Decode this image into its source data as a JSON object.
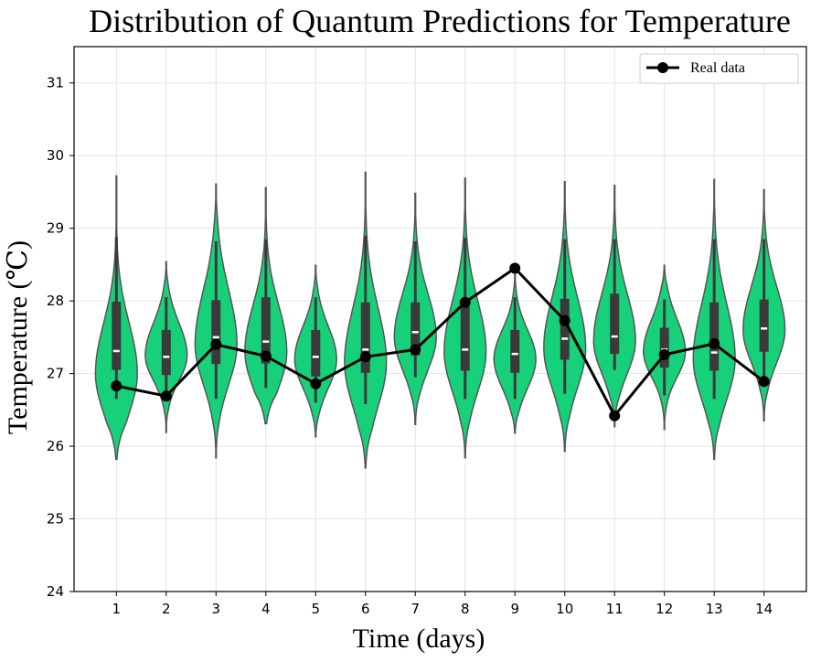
{
  "chart_data": {
    "type": "violin",
    "title": "Distribution of Quantum Predictions for Temperature",
    "xlabel": "Time (days)",
    "ylabel": "Temperature (℃)",
    "xlim": [
      0.15,
      14.85
    ],
    "ylim": [
      24,
      31.5
    ],
    "x_ticks": [
      "1",
      "2",
      "3",
      "4",
      "5",
      "6",
      "7",
      "8",
      "9",
      "10",
      "11",
      "12",
      "13",
      "14"
    ],
    "y_ticks": [
      "24",
      "25",
      "26",
      "27",
      "28",
      "29",
      "30",
      "31"
    ],
    "grid": true,
    "legend": {
      "position": "top-right",
      "entries": [
        "Real data"
      ]
    },
    "colors": {
      "violin_fill": "#17d17a",
      "violin_edge": "#555555",
      "box": "#3a3a3a",
      "median": "#ffffff",
      "line": "#000000"
    },
    "real_data": {
      "name": "Real data",
      "x": [
        1,
        2,
        3,
        4,
        5,
        6,
        7,
        8,
        9,
        10,
        11,
        12,
        13,
        14
      ],
      "y": [
        26.83,
        26.69,
        27.4,
        27.24,
        26.86,
        27.23,
        27.33,
        27.98,
        28.45,
        27.73,
        26.42,
        27.26,
        27.41,
        26.89
      ]
    },
    "violins": [
      {
        "day": 1,
        "min": 25.82,
        "max": 29.72,
        "q1": 27.05,
        "median": 27.31,
        "q3": 27.99,
        "wlo": 26.65,
        "whi": 28.88,
        "mode": 27.0,
        "sl": 0.55,
        "su": 0.7
      },
      {
        "day": 2,
        "min": 26.19,
        "max": 28.54,
        "q1": 26.98,
        "median": 27.23,
        "q3": 27.6,
        "wlo": 26.7,
        "whi": 28.05,
        "mode": 27.25,
        "sl": 0.35,
        "su": 0.45
      },
      {
        "day": 3,
        "min": 25.84,
        "max": 29.61,
        "q1": 27.13,
        "median": 27.5,
        "q3": 28.01,
        "wlo": 26.65,
        "whi": 28.82,
        "mode": 27.4,
        "sl": 0.55,
        "su": 0.75
      },
      {
        "day": 4,
        "min": 26.31,
        "max": 29.56,
        "q1": 27.14,
        "median": 27.44,
        "q3": 28.05,
        "wlo": 26.8,
        "whi": 28.85,
        "mode": 27.3,
        "sl": 0.5,
        "su": 0.65
      },
      {
        "day": 5,
        "min": 26.13,
        "max": 28.49,
        "q1": 26.96,
        "median": 27.23,
        "q3": 27.6,
        "wlo": 26.6,
        "whi": 28.05,
        "mode": 27.2,
        "sl": 0.4,
        "su": 0.45
      },
      {
        "day": 6,
        "min": 25.7,
        "max": 29.77,
        "q1": 27.01,
        "median": 27.33,
        "q3": 27.98,
        "wlo": 26.58,
        "whi": 28.9,
        "mode": 27.15,
        "sl": 0.6,
        "su": 0.75
      },
      {
        "day": 7,
        "min": 26.3,
        "max": 29.48,
        "q1": 27.25,
        "median": 27.57,
        "q3": 27.98,
        "wlo": 26.95,
        "whi": 28.82,
        "mode": 27.5,
        "sl": 0.45,
        "su": 0.6
      },
      {
        "day": 8,
        "min": 25.84,
        "max": 29.69,
        "q1": 27.04,
        "median": 27.33,
        "q3": 27.97,
        "wlo": 26.65,
        "whi": 28.87,
        "mode": 27.3,
        "sl": 0.55,
        "su": 0.7
      },
      {
        "day": 9,
        "min": 26.18,
        "max": 28.44,
        "q1": 27.01,
        "median": 27.27,
        "q3": 27.6,
        "wlo": 26.65,
        "whi": 28.05,
        "mode": 27.2,
        "sl": 0.4,
        "su": 0.4
      },
      {
        "day": 10,
        "min": 25.93,
        "max": 29.64,
        "q1": 27.19,
        "median": 27.48,
        "q3": 28.03,
        "wlo": 26.72,
        "whi": 28.85,
        "mode": 27.35,
        "sl": 0.55,
        "su": 0.7
      },
      {
        "day": 11,
        "min": 26.27,
        "max": 29.59,
        "q1": 27.27,
        "median": 27.51,
        "q3": 28.1,
        "wlo": 27.05,
        "whi": 28.85,
        "mode": 27.45,
        "sl": 0.45,
        "su": 0.65
      },
      {
        "day": 12,
        "min": 26.23,
        "max": 28.49,
        "q1": 27.08,
        "median": 27.33,
        "q3": 27.63,
        "wlo": 26.7,
        "whi": 28.02,
        "mode": 27.3,
        "sl": 0.35,
        "su": 0.45
      },
      {
        "day": 13,
        "min": 25.82,
        "max": 29.67,
        "q1": 27.04,
        "median": 27.29,
        "q3": 27.98,
        "wlo": 26.65,
        "whi": 28.85,
        "mode": 27.2,
        "sl": 0.55,
        "su": 0.75
      },
      {
        "day": 14,
        "min": 26.35,
        "max": 29.53,
        "q1": 27.3,
        "median": 27.62,
        "q3": 28.02,
        "wlo": 26.95,
        "whi": 28.85,
        "mode": 27.6,
        "sl": 0.45,
        "su": 0.6
      }
    ]
  }
}
